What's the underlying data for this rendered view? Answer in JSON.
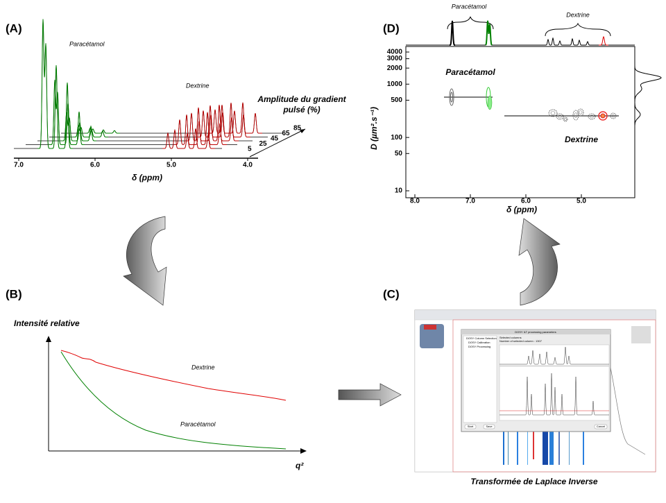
{
  "panel_a": {
    "label": "(A)",
    "paracetamol": "Paracétamol",
    "dextrine": "Dextrine",
    "gradient_title": [
      "Amplitude  du gradient",
      "pulsé (%)"
    ],
    "gradient_levels": [
      "5",
      "25",
      "45",
      "65",
      "85"
    ],
    "x_ticks": [
      "7.0",
      "6.0",
      "5.0",
      "4.0"
    ],
    "x_label": "δ (ppm)"
  },
  "panel_b": {
    "label": "(B)",
    "y_label": "Intensité  relative",
    "dextrine": "Dextrine",
    "paracetamol": "Paracétamol",
    "x_label": "q²"
  },
  "panel_c": {
    "label": "(C)",
    "caption": "Transformée  de Laplace Inverse",
    "dialog_title": "DOSY ILT processing parameters",
    "steps": [
      "DOSY Column Selection",
      "DOSY Calibration",
      "DOSY Processing"
    ],
    "selected": "Selected columns",
    "count": "Number of selected column : 1307",
    "buttons": [
      "Start",
      "Save",
      "Cancel"
    ]
  },
  "panel_d": {
    "label": "(D)",
    "paracetamol_top": "Paracétamol",
    "dextrine_top": "Dextrine",
    "paracetamol": "Paracétamol",
    "dextrine": "Dextrine",
    "y_label": "D (µm².s⁻¹)",
    "y_ticks": [
      4000,
      3000,
      2000,
      1000,
      500,
      100,
      50,
      10
    ],
    "ylim": [
      10,
      4000
    ],
    "log_y": true,
    "x_ticks": [
      {
        "value": 8,
        "label": "8.0"
      },
      {
        "value": 7,
        "label": "7.0"
      },
      {
        "value": 6,
        "label": "6.0"
      },
      {
        "value": 5,
        "label": "5.0"
      }
    ],
    "xlim": [
      8.15,
      4.05
    ],
    "x_label": "δ (ppm)"
  }
}
